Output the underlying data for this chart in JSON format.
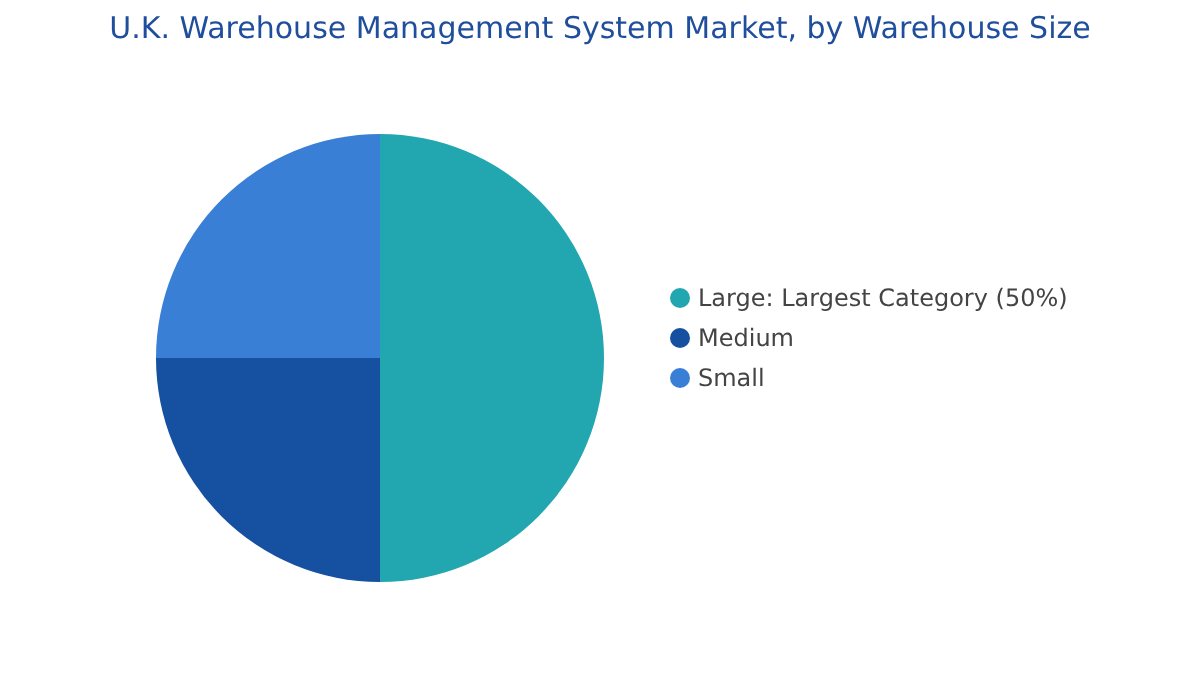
{
  "chart_data": {
    "type": "pie",
    "title": "U.K. Warehouse Management System Market, by Warehouse Size",
    "categories": [
      "Large:  Largest Category (50%)",
      "Medium",
      "Small"
    ],
    "values": [
      50,
      25,
      25
    ],
    "colors": [
      "#22a6b0",
      "#1650a0",
      "#3a7fd6"
    ],
    "legend": "right"
  }
}
